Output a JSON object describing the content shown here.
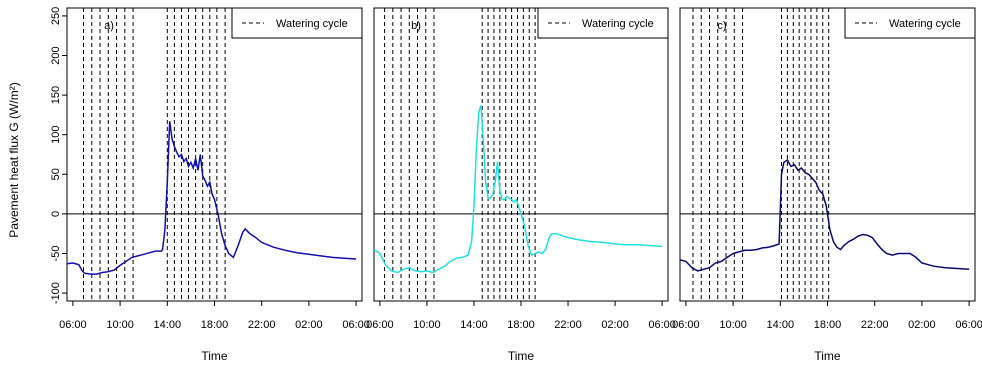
{
  "ylabel": "Pavement heat flux G (W/m²)",
  "xlabel": "Time",
  "legend_label": "Watering cycle",
  "chart_data": [
    {
      "type": "line",
      "panel_label": "a)",
      "color": "#1010b0",
      "xlabel": "Time",
      "ylabel": "Pavement heat flux G (W/m²)",
      "ylim": [
        -110,
        260
      ],
      "y_ticks": [
        -100,
        -50,
        0,
        50,
        100,
        150,
        200,
        250
      ],
      "x_tick_labels": [
        "06:00",
        "10:00",
        "14:00",
        "18:00",
        "22:00",
        "02:00",
        "06:00"
      ],
      "x_ticks_hours": [
        6,
        10,
        14,
        18,
        22,
        26,
        30
      ],
      "x_unit": "hour of day (continuing past midnight)",
      "legend": {
        "position": "top-right",
        "label": "Watering cycle"
      },
      "watering_cycle_hours": [
        6.9,
        7.6,
        8.3,
        9.0,
        9.7,
        10.4,
        11.1,
        14.0,
        14.6,
        15.2,
        15.8,
        16.4,
        17.0,
        17.6,
        18.2,
        18.9
      ],
      "series": [
        {
          "x": [
            5.5,
            6.0,
            6.5,
            6.8,
            7.0,
            7.5,
            8.0,
            8.5,
            9.0,
            9.5,
            10.0,
            10.5,
            11.0,
            11.5,
            12.0,
            12.5,
            13.0,
            13.5,
            13.6,
            13.8,
            14.0,
            14.2,
            14.4,
            14.6,
            14.8,
            15.0,
            15.2,
            15.4,
            15.6,
            15.8,
            16.0,
            16.2,
            16.4,
            16.6,
            16.8,
            17.0,
            17.2,
            17.4,
            17.6,
            17.8,
            18.0,
            18.3,
            18.6,
            18.9,
            19.2,
            19.6,
            20.0,
            20.4,
            20.6,
            20.8,
            21.0,
            21.5,
            22.0,
            23.0,
            24.0,
            25.0,
            26.0,
            27.0,
            28.0,
            29.0,
            30.0
          ],
          "y": [
            -63,
            -62,
            -64,
            -72,
            -75,
            -76,
            -76,
            -74,
            -73,
            -71,
            -65,
            -60,
            -55,
            -53,
            -51,
            -49,
            -47,
            -47,
            -45,
            -20,
            40,
            117,
            95,
            85,
            78,
            72,
            75,
            66,
            70,
            60,
            65,
            58,
            70,
            55,
            75,
            48,
            42,
            35,
            40,
            25,
            18,
            0,
            -25,
            -40,
            -50,
            -55,
            -40,
            -23,
            -19,
            -22,
            -25,
            -30,
            -36,
            -42,
            -46,
            -49,
            -51,
            -53,
            -55,
            -56,
            -57
          ]
        }
      ]
    },
    {
      "type": "line",
      "panel_label": "b)",
      "color": "#20e0e0",
      "xlabel": "Time",
      "ylim": [
        -110,
        260
      ],
      "y_ticks": [
        -100,
        -50,
        0,
        50,
        100,
        150,
        200,
        250
      ],
      "x_tick_labels": [
        "06:00",
        "10:00",
        "14:00",
        "18:00",
        "22:00",
        "02:00",
        "06:00"
      ],
      "x_ticks_hours": [
        6,
        10,
        14,
        18,
        22,
        26,
        30
      ],
      "legend": {
        "position": "top-right",
        "label": "Watering cycle"
      },
      "watering_cycle_hours": [
        6.4,
        7.1,
        7.8,
        8.5,
        9.2,
        9.9,
        10.6,
        14.7,
        15.2,
        15.7,
        16.2,
        16.7,
        17.2,
        17.7,
        18.2,
        18.7,
        19.2
      ],
      "series": [
        {
          "x": [
            5.5,
            6.0,
            6.5,
            7.0,
            7.5,
            8.0,
            8.5,
            9.0,
            9.5,
            10.0,
            10.5,
            11.0,
            11.5,
            12.0,
            12.5,
            13.0,
            13.5,
            13.8,
            14.0,
            14.2,
            14.4,
            14.6,
            14.8,
            15.0,
            15.2,
            15.4,
            15.6,
            15.8,
            16.0,
            16.2,
            16.4,
            16.6,
            16.8,
            17.0,
            17.2,
            17.4,
            17.6,
            17.8,
            18.0,
            18.3,
            18.6,
            18.9,
            19.2,
            19.5,
            19.8,
            20.1,
            20.4,
            20.6,
            21.0,
            22.0,
            23.0,
            24.0,
            25.0,
            26.0,
            27.0,
            28.0,
            29.0,
            30.0
          ],
          "y": [
            -45,
            -50,
            -65,
            -72,
            -74,
            -70,
            -68,
            -72,
            -73,
            -72,
            -74,
            -70,
            -66,
            -60,
            -56,
            -55,
            -52,
            -35,
            10,
            80,
            128,
            137,
            90,
            40,
            20,
            20,
            25,
            40,
            66,
            30,
            18,
            18,
            22,
            20,
            18,
            15,
            18,
            10,
            0,
            -15,
            -40,
            -52,
            -50,
            -48,
            -50,
            -45,
            -30,
            -25,
            -25,
            -30,
            -33,
            -35,
            -36,
            -38,
            -39,
            -39,
            -40,
            -41
          ]
        }
      ]
    },
    {
      "type": "line",
      "panel_label": "c)",
      "color": "#0a0a70",
      "xlabel": "Time",
      "ylim": [
        -110,
        260
      ],
      "y_ticks": [
        -100,
        -50,
        0,
        50,
        100,
        150,
        200,
        250
      ],
      "x_tick_labels": [
        "06:00",
        "10:00",
        "14:00",
        "18:00",
        "22:00",
        "02:00",
        "06:00"
      ],
      "x_ticks_hours": [
        6,
        10,
        14,
        18,
        22,
        26,
        30
      ],
      "legend": {
        "position": "top-right",
        "label": "Watering cycle"
      },
      "watering_cycle_hours": [
        6.6,
        7.3,
        8.0,
        8.7,
        9.4,
        10.1,
        10.8,
        14.1,
        14.6,
        15.1,
        15.6,
        16.1,
        16.6,
        17.1,
        17.6,
        18.1
      ],
      "series": [
        {
          "x": [
            5.5,
            6.0,
            6.5,
            7.0,
            7.5,
            8.0,
            8.5,
            9.0,
            9.5,
            10.0,
            10.5,
            11.0,
            11.5,
            12.0,
            12.5,
            13.0,
            13.5,
            13.9,
            14.1,
            14.3,
            14.6,
            14.9,
            15.2,
            15.5,
            15.8,
            16.1,
            16.4,
            16.7,
            17.0,
            17.3,
            17.6,
            17.9,
            18.2,
            18.5,
            18.8,
            19.1,
            19.4,
            19.8,
            20.2,
            20.6,
            21.0,
            21.4,
            21.8,
            22.2,
            22.6,
            23.0,
            23.5,
            24.0,
            24.5,
            25.0,
            25.5,
            26.0,
            27.0,
            28.0,
            29.0,
            30.0
          ],
          "y": [
            -58,
            -60,
            -68,
            -72,
            -70,
            -68,
            -62,
            -60,
            -55,
            -50,
            -48,
            -46,
            -46,
            -45,
            -43,
            -42,
            -40,
            -38,
            50,
            65,
            68,
            60,
            62,
            55,
            58,
            52,
            50,
            45,
            40,
            30,
            25,
            10,
            -20,
            -35,
            -42,
            -45,
            -40,
            -35,
            -32,
            -28,
            -26,
            -27,
            -30,
            -38,
            -45,
            -50,
            -52,
            -50,
            -50,
            -50,
            -55,
            -62,
            -66,
            -68,
            -69,
            -70
          ]
        }
      ]
    }
  ]
}
